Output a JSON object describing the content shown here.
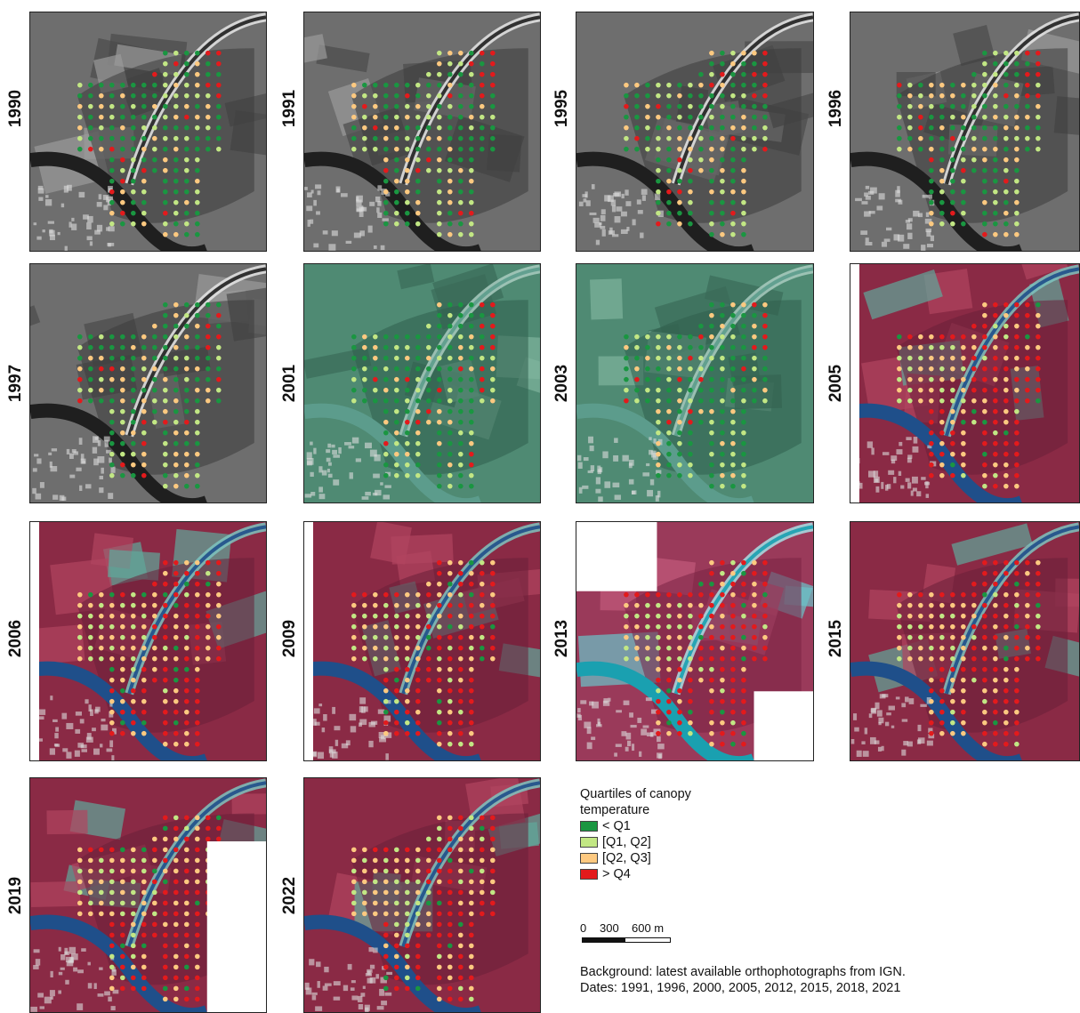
{
  "panels": [
    {
      "year": "1990",
      "style": "gray"
    },
    {
      "year": "1991",
      "style": "gray"
    },
    {
      "year": "1995",
      "style": "gray"
    },
    {
      "year": "1996",
      "style": "gray"
    },
    {
      "year": "1997",
      "style": "gray"
    },
    {
      "year": "2001",
      "style": "teal"
    },
    {
      "year": "2003",
      "style": "teal"
    },
    {
      "year": "2005",
      "style": "false-color"
    },
    {
      "year": "2006",
      "style": "false-color"
    },
    {
      "year": "2009",
      "style": "false-color"
    },
    {
      "year": "2013",
      "style": "false-color-cyan"
    },
    {
      "year": "2015",
      "style": "false-color"
    },
    {
      "year": "2019",
      "style": "false-color"
    },
    {
      "year": "2022",
      "style": "false-color"
    }
  ],
  "legend": {
    "title": "Quartiles of canopy temperature",
    "items": [
      {
        "label": "< Q1",
        "color": "#1a9641"
      },
      {
        "label": "[Q1, Q2]",
        "color": "#c2e784"
      },
      {
        "label": "[Q2, Q3]",
        "color": "#fdc980"
      },
      {
        "label": "> Q4",
        "color": "#e31a1c"
      }
    ]
  },
  "scale": {
    "t0": "0",
    "t1": "300",
    "t2": "600 m"
  },
  "notes": {
    "line1": "Background: latest available orthophotographs from IGN.",
    "line2": "Dates: 1991, 1996, 2000, 2005, 2012, 2015, 2018, 2021"
  }
}
